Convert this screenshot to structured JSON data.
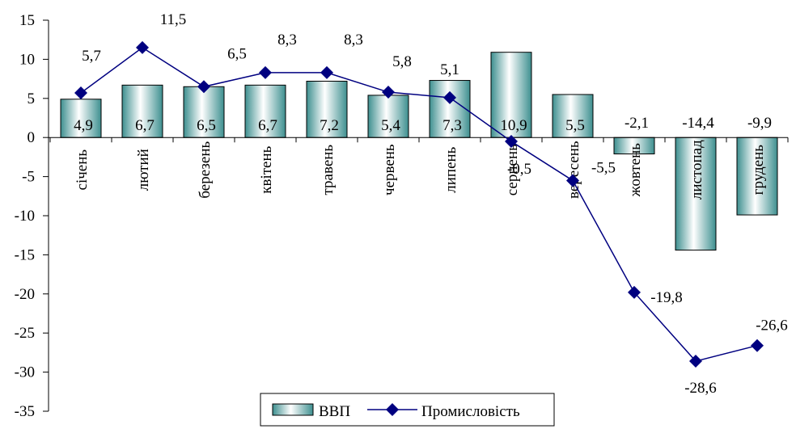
{
  "chart_data": {
    "type": "bar",
    "categories": [
      "січень",
      "лютий",
      "березень",
      "квітень",
      "травень",
      "червень",
      "липень",
      "серпень",
      "вересень",
      "жовтень",
      "листопад",
      "грудень"
    ],
    "series": [
      {
        "name": "ВВП",
        "type": "bar",
        "values": [
          4.9,
          6.7,
          6.5,
          6.7,
          7.2,
          5.4,
          7.3,
          10.9,
          5.5,
          -2.1,
          -14.4,
          -9.9
        ],
        "labels": [
          "4,9",
          "6,7",
          "6,5",
          "6,7",
          "7,2",
          "5,4",
          "7,3",
          "10,9",
          "5,5",
          "-2,1",
          "-14,4",
          "-9,9"
        ],
        "color": "#a8dcdc"
      },
      {
        "name": "Промисловість",
        "type": "line",
        "values": [
          5.7,
          11.5,
          6.5,
          8.3,
          8.3,
          5.8,
          5.1,
          -0.5,
          -5.5,
          -19.8,
          -28.6,
          -26.6
        ],
        "labels": [
          "5,7",
          "11,5",
          "6,5",
          "8,3",
          "8,3",
          "5,8",
          "5,1",
          "-0,5",
          "-5,5",
          "-19,8",
          "-28,6",
          "-26,6"
        ],
        "color": "#000080"
      }
    ],
    "title": "",
    "xlabel": "",
    "ylabel": "",
    "ylim": [
      -35,
      15
    ],
    "yticks": [
      15,
      10,
      5,
      0,
      -5,
      -10,
      -15,
      -20,
      -25,
      -30,
      -35
    ],
    "grid": false,
    "legend_position": "bottom-center"
  }
}
